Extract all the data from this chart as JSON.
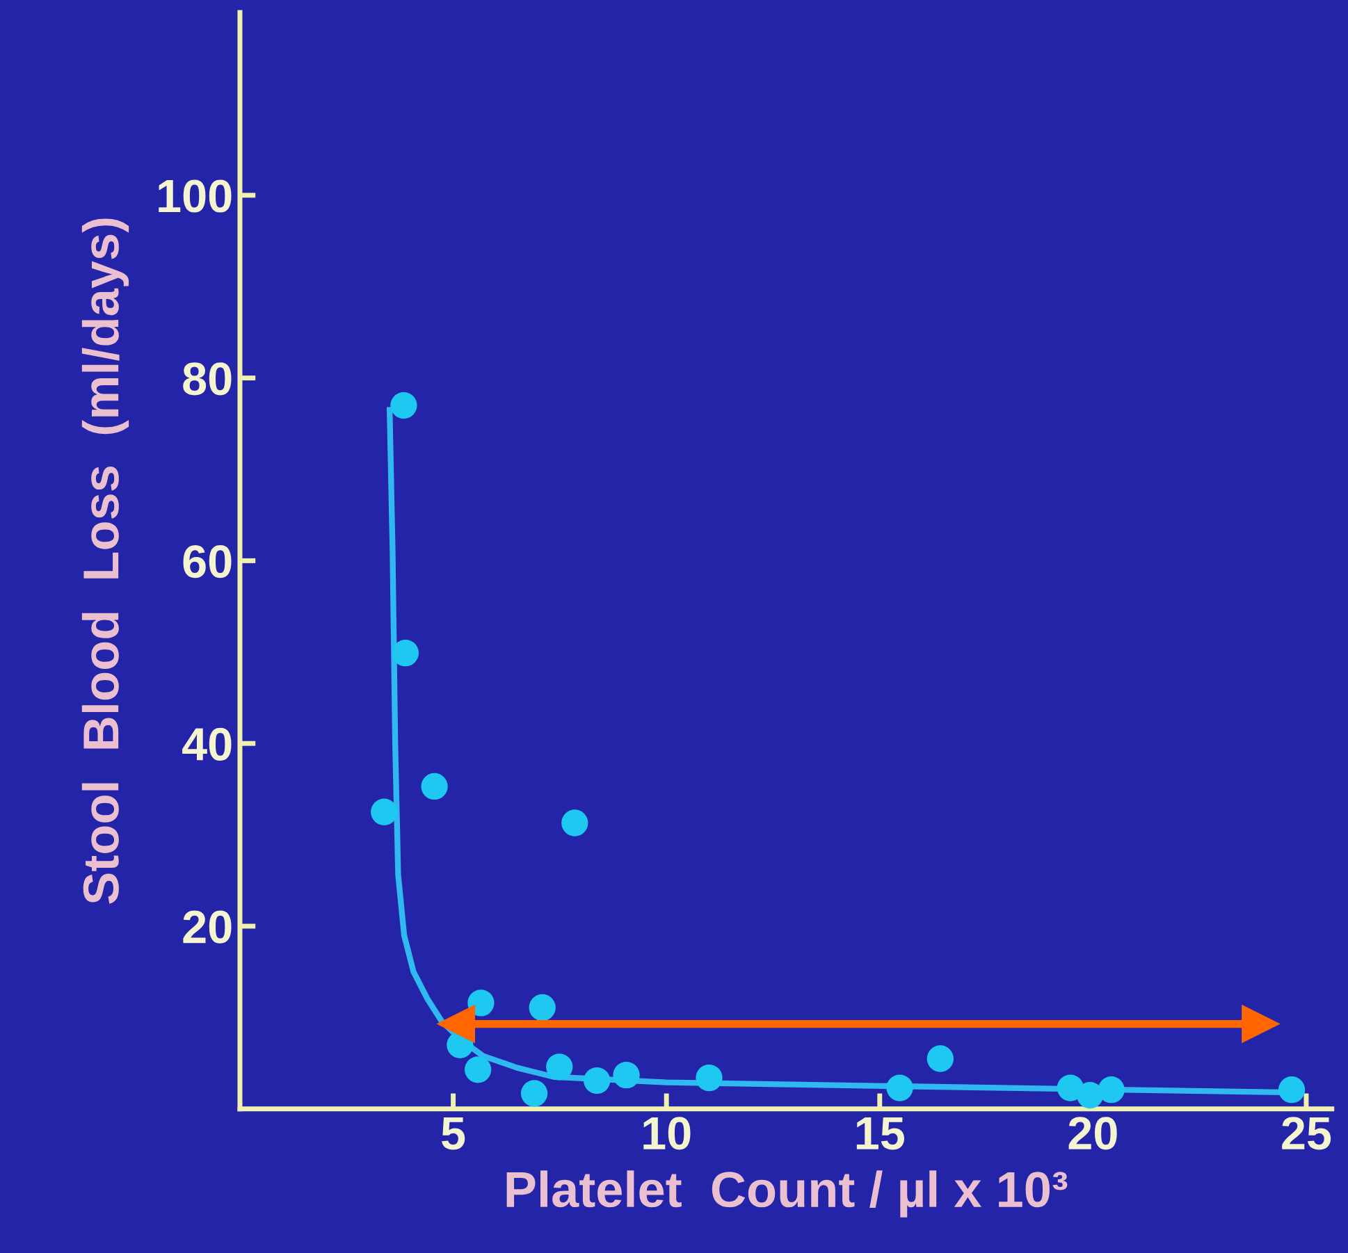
{
  "chart_data": {
    "type": "scatter",
    "xlabel": "Platelet  Count / µl x 10³",
    "ylabel": "Stool  Blood  Loss  (ml/days)",
    "xlim": [
      0,
      25.6
    ],
    "ylim": [
      0,
      120
    ],
    "xticks": [
      5,
      10,
      15,
      20,
      25
    ],
    "yticks": [
      20,
      40,
      60,
      80,
      100
    ],
    "grid": false,
    "legend": false,
    "series": [
      {
        "color": "#1ec8f0",
        "marker": "circle",
        "x": [
          3.38,
          3.84,
          3.88,
          4.56,
          7.85,
          5.65,
          7.09,
          5.16,
          5.58,
          6.9,
          7.49,
          8.37,
          9.06,
          11.0,
          15.47,
          16.42,
          19.47,
          19.93,
          20.43,
          24.66
        ],
        "values": [
          32.5,
          77,
          49.9,
          35.3,
          31.3,
          11.6,
          11.1,
          7.0,
          4.3,
          1.7,
          4.6,
          3.1,
          3.7,
          3.4,
          2.3,
          5.5,
          2.3,
          1.5,
          2.1,
          2.1
        ]
      },
      {
        "type": "line",
        "color": "#30b8f0",
        "marker": "none",
        "line_style": "solid",
        "x": [
          3.51,
          3.58,
          3.64,
          3.71,
          3.85,
          4.07,
          4.4,
          4.73,
          5.2,
          5.7,
          6.5,
          7.36,
          10,
          13.9,
          20.5,
          24.66
        ],
        "values": [
          76.5,
          60.8,
          40,
          25.6,
          19,
          15,
          12,
          9.6,
          7.5,
          5.8,
          4.5,
          3.5,
          2.9,
          2.6,
          2.1,
          1.8
        ]
      },
      {
        "type": "line",
        "color": "#ff6600",
        "marker": "triangle",
        "line_style": "solid",
        "x": [
          5.06,
          23.94
        ],
        "values": [
          9.3,
          9.3
        ]
      }
    ]
  }
}
